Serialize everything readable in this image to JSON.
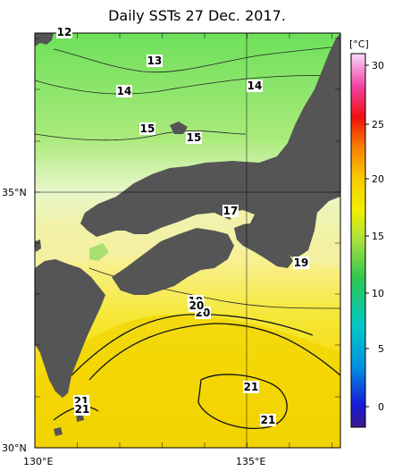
{
  "title": "Daily SSTs 27 Dec. 2017.",
  "map": {
    "lon_labels": [
      "130°E",
      "135°E"
    ],
    "lat_labels": [
      "30°N",
      "35°N"
    ],
    "contour_labels": [
      {
        "text": "12"
      },
      {
        "text": "13"
      },
      {
        "text": "14"
      },
      {
        "text": "14"
      },
      {
        "text": "15"
      },
      {
        "text": "15"
      },
      {
        "text": "17"
      },
      {
        "text": "19"
      },
      {
        "text": "19"
      },
      {
        "text": "20"
      },
      {
        "text": "21"
      },
      {
        "text": "21"
      },
      {
        "text": "21"
      },
      {
        "text": "20"
      },
      {
        "text": "21"
      }
    ]
  },
  "colorbar": {
    "unit": "[°C]",
    "ticks": [
      "30",
      "25",
      "20",
      "15",
      "10",
      "5",
      "0"
    ],
    "colors": {
      "warm": "#f0d800",
      "mid": "#c8f060",
      "cool": "#90e070",
      "land": "#555555"
    }
  }
}
